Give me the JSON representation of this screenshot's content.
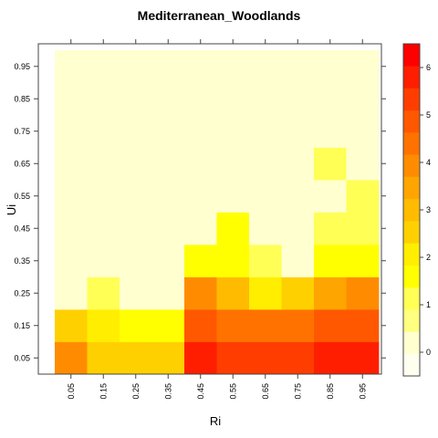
{
  "chart_data": {
    "type": "heatmap",
    "title": "Mediterranean_Woodlands",
    "xlabel": "Ri",
    "ylabel": "Ui",
    "x_categories": [
      "0.05",
      "0.15",
      "0.25",
      "0.35",
      "0.45",
      "0.55",
      "0.65",
      "0.75",
      "0.85",
      "0.95"
    ],
    "y_categories": [
      "0.05",
      "0.15",
      "0.25",
      "0.35",
      "0.45",
      "0.55",
      "0.65",
      "0.75",
      "0.85",
      "0.95"
    ],
    "values": [
      [
        4.0,
        2.6,
        2.5,
        2.5,
        5.6,
        5.2,
        5.2,
        5.4,
        5.6,
        6.0
      ],
      [
        2.7,
        2.1,
        1.5,
        1.5,
        4.8,
        4.5,
        4.5,
        4.5,
        5.0,
        5.0
      ],
      [
        0.05,
        1.2,
        0.0,
        0.05,
        3.7,
        3.1,
        2.0,
        2.7,
        3.3,
        3.7
      ],
      [
        0.0,
        0.0,
        0.0,
        0.0,
        1.5,
        1.5,
        1.2,
        0.05,
        1.5,
        1.5
      ],
      [
        0.0,
        0.0,
        0.0,
        0.0,
        0.05,
        1.5,
        0.05,
        0.05,
        1.2,
        1.2
      ],
      [
        0.0,
        0.0,
        0.0,
        0.0,
        0.05,
        0.05,
        0.0,
        0.0,
        0.05,
        1.1
      ],
      [
        0.0,
        0.0,
        0.0,
        0.0,
        0.0,
        0.05,
        0.0,
        0.0,
        1.2,
        0.05
      ],
      [
        0.0,
        0.0,
        0.0,
        0.0,
        0.0,
        0.05,
        0.0,
        0.0,
        0.0,
        0.05
      ],
      [
        0.0,
        0.0,
        0.0,
        0.0,
        0.0,
        0.0,
        0.0,
        0.0,
        0.0,
        0.0
      ],
      [
        0.0,
        0.0,
        0.0,
        0.0,
        0.0,
        0.0,
        0.0,
        0.0,
        0.0,
        0.0
      ]
    ],
    "colorbar": {
      "range": [
        -0.5,
        6.5
      ],
      "ticks": [
        "0",
        "1",
        "2",
        "3",
        "4",
        "5",
        "6"
      ]
    },
    "grid": false,
    "legend": "right"
  }
}
